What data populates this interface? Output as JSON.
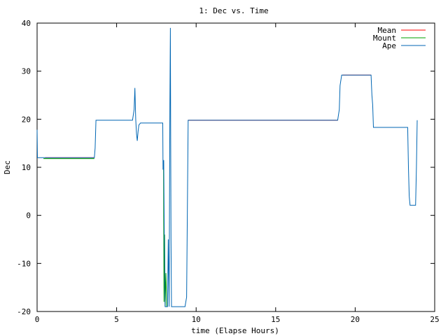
{
  "chart_data": {
    "type": "line",
    "title": "1: Dec vs. Time",
    "xlabel": "time (Elapse Hours)",
    "ylabel": "Dec",
    "xlim": [
      0,
      25
    ],
    "ylim": [
      -20,
      40
    ],
    "xticks": [
      "0",
      "5",
      "10",
      "15",
      "20",
      "25"
    ],
    "yticks": [
      "-20",
      "-10",
      "0",
      "10",
      "20",
      "30",
      "40"
    ],
    "legend_position": "top-right",
    "grid": false,
    "series": [
      {
        "name": "Mean",
        "color": "#ff0000",
        "segments": [
          [
            [
              0.5,
              12.0
            ],
            [
              3.6,
              12.0
            ]
          ],
          [
            [
              9.5,
              19.8
            ],
            [
              18.9,
              19.8
            ]
          ],
          [
            [
              19.2,
              29.2
            ],
            [
              21.0,
              29.2
            ]
          ]
        ]
      },
      {
        "name": "Mount",
        "color": "#00a000",
        "segments": [
          [
            [
              0.4,
              11.8
            ],
            [
              3.6,
              11.8
            ]
          ],
          [
            [
              7.95,
              11.0
            ],
            [
              7.98,
              -18.0
            ],
            [
              8.02,
              -4.0
            ],
            [
              8.05,
              -19.0
            ],
            [
              8.1,
              -12.0
            ],
            [
              8.15,
              -19.0
            ]
          ]
        ]
      },
      {
        "name": "Ape",
        "color": "#0066b3",
        "points": [
          [
            0.0,
            17.8
          ],
          [
            0.02,
            12.0
          ],
          [
            0.1,
            12.0
          ],
          [
            3.6,
            12.0
          ],
          [
            3.65,
            14.0
          ],
          [
            3.7,
            19.8
          ],
          [
            6.0,
            19.8
          ],
          [
            6.1,
            22.0
          ],
          [
            6.15,
            26.5
          ],
          [
            6.2,
            20.0
          ],
          [
            6.25,
            17.0
          ],
          [
            6.3,
            15.5
          ],
          [
            6.35,
            17.5
          ],
          [
            6.4,
            18.8
          ],
          [
            6.5,
            19.2
          ],
          [
            7.9,
            19.2
          ],
          [
            7.92,
            9.5
          ],
          [
            7.96,
            11.5
          ],
          [
            8.0,
            -6.0
          ],
          [
            8.05,
            -19.0
          ],
          [
            8.2,
            -19.0
          ],
          [
            8.25,
            -5.0
          ],
          [
            8.3,
            -19.0
          ],
          [
            8.35,
            23.0
          ],
          [
            8.38,
            39.0
          ],
          [
            8.42,
            -5.0
          ],
          [
            8.45,
            -19.0
          ],
          [
            9.3,
            -19.0
          ],
          [
            9.4,
            -17.0
          ],
          [
            9.5,
            19.8
          ],
          [
            18.9,
            19.8
          ],
          [
            19.0,
            22.0
          ],
          [
            19.05,
            27.0
          ],
          [
            19.15,
            29.2
          ],
          [
            21.0,
            29.2
          ],
          [
            21.05,
            25.0
          ],
          [
            21.1,
            23.0
          ],
          [
            21.15,
            18.3
          ],
          [
            23.3,
            18.3
          ],
          [
            23.35,
            10.0
          ],
          [
            23.4,
            4.0
          ],
          [
            23.45,
            2.1
          ],
          [
            23.8,
            2.1
          ],
          [
            23.85,
            10.0
          ],
          [
            23.9,
            19.8
          ]
        ]
      }
    ]
  }
}
